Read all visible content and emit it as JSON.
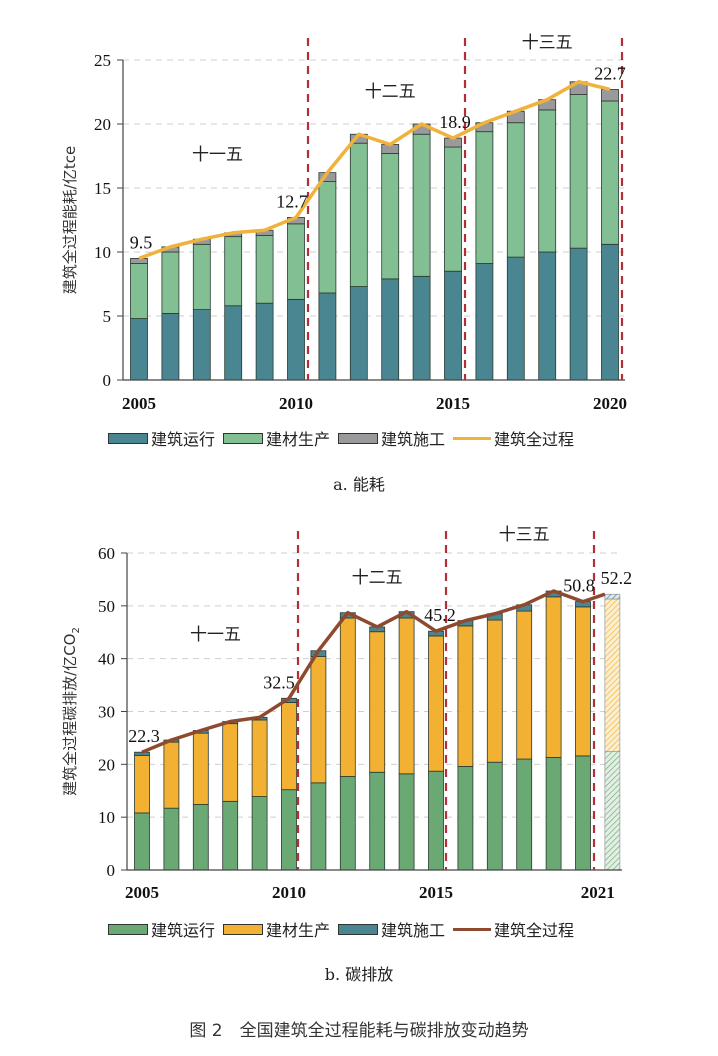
{
  "colors": {
    "operation_a": "#4a8592",
    "materials_a": "#82bf92",
    "construction_a": "#9a9a9c",
    "total_a": "#f0b23a",
    "operation_b": "#6aa874",
    "materials_b": "#f2b133",
    "construction_b": "#4a8592",
    "total_b": "#8e4a2e",
    "divider": "#b0303a"
  },
  "chart_data": [
    {
      "type": "bar",
      "stacked": true,
      "title": "a. 能耗",
      "ylabel": "建筑全过程能耗/亿tce",
      "xlabel": "",
      "ylim": [
        0,
        25
      ],
      "yticks": [
        "0",
        "5",
        "10",
        "15",
        "20",
        "25"
      ],
      "ytick_values": [
        0,
        5,
        10,
        15,
        20,
        25
      ],
      "grid": true,
      "categories": [
        "2005",
        "2006",
        "2007",
        "2008",
        "2009",
        "2010",
        "2011",
        "2012",
        "2013",
        "2014",
        "2015",
        "2016",
        "2017",
        "2018",
        "2019",
        "2020"
      ],
      "xtick_labels": [
        {
          "index": 0,
          "label": "2005"
        },
        {
          "index": 5,
          "label": "2010"
        },
        {
          "index": 10,
          "label": "2015"
        },
        {
          "index": 15,
          "label": "2020"
        }
      ],
      "series": [
        {
          "name": "建筑运行",
          "kind": "bar",
          "color_key": "operation_a",
          "values": [
            4.8,
            5.2,
            5.5,
            5.8,
            6.0,
            6.3,
            6.8,
            7.3,
            7.9,
            8.1,
            8.5,
            9.1,
            9.6,
            10.0,
            10.3,
            10.6
          ]
        },
        {
          "name": "建材生产",
          "kind": "bar",
          "color_key": "materials_a",
          "values": [
            4.3,
            4.8,
            5.1,
            5.4,
            5.3,
            5.9,
            8.7,
            11.2,
            9.8,
            11.1,
            9.7,
            10.3,
            10.5,
            11.1,
            12.0,
            11.2
          ]
        },
        {
          "name": "建筑施工",
          "kind": "bar",
          "color_key": "construction_a",
          "values": [
            0.4,
            0.4,
            0.4,
            0.3,
            0.4,
            0.5,
            0.7,
            0.7,
            0.7,
            0.8,
            0.7,
            0.7,
            0.9,
            0.8,
            1.0,
            0.9
          ]
        },
        {
          "name": "建筑全过程",
          "kind": "line",
          "color_key": "total_a",
          "values": [
            9.5,
            10.4,
            11.0,
            11.5,
            11.7,
            12.7,
            16.2,
            19.2,
            18.4,
            20.0,
            18.9,
            20.1,
            21.0,
            21.9,
            23.3,
            22.7
          ]
        }
      ],
      "data_labels": [
        {
          "index": 0,
          "text": "9.5"
        },
        {
          "index": 5,
          "text": "12.7"
        },
        {
          "index": 10,
          "text": "18.9"
        },
        {
          "index": 15,
          "text": "22.7"
        }
      ],
      "periods": [
        {
          "label": "十一五",
          "start": 0,
          "end": 5
        },
        {
          "label": "十二五",
          "start": 6,
          "end": 10
        },
        {
          "label": "十三五",
          "start": 11,
          "end": 15
        }
      ],
      "dividers_after_index": [
        5,
        10,
        15
      ],
      "legend_position": "bottom"
    },
    {
      "type": "bar",
      "stacked": true,
      "title": "b. 碳排放",
      "ylabel": "建筑全过程碳排放/亿CO",
      "ylabel_sub": "2",
      "xlabel": "",
      "ylim": [
        0,
        60
      ],
      "yticks": [
        "0",
        "10",
        "20",
        "30",
        "40",
        "50",
        "60"
      ],
      "ytick_values": [
        0,
        10,
        20,
        30,
        40,
        50,
        60
      ],
      "grid": true,
      "categories": [
        "2005",
        "2006",
        "2007",
        "2008",
        "2009",
        "2010",
        "2011",
        "2012",
        "2013",
        "2014",
        "2015",
        "2016",
        "2017",
        "2018",
        "2019",
        "2020",
        "2021"
      ],
      "xtick_labels": [
        {
          "index": 0,
          "label": "2005"
        },
        {
          "index": 5,
          "label": "2010"
        },
        {
          "index": 10,
          "label": "2015"
        },
        {
          "index": 15.5,
          "label": "2021"
        }
      ],
      "hatched_indices": [
        16
      ],
      "series": [
        {
          "name": "建筑运行",
          "kind": "bar",
          "color_key": "operation_b",
          "values": [
            10.8,
            11.7,
            12.4,
            13.0,
            13.9,
            15.2,
            16.5,
            17.7,
            18.5,
            18.2,
            18.7,
            19.6,
            20.4,
            21.0,
            21.3,
            21.6,
            22.4
          ]
        },
        {
          "name": "建材生产",
          "kind": "bar",
          "color_key": "materials_b",
          "values": [
            10.9,
            12.5,
            13.5,
            14.7,
            14.5,
            16.5,
            23.9,
            30.0,
            26.6,
            29.5,
            25.6,
            26.6,
            26.9,
            28.0,
            30.4,
            28.2,
            28.9
          ]
        },
        {
          "name": "建筑施工",
          "kind": "bar",
          "color_key": "construction_b",
          "values": [
            0.6,
            0.4,
            0.5,
            0.4,
            0.5,
            0.8,
            1.1,
            1.0,
            0.9,
            1.2,
            0.9,
            1.0,
            1.2,
            1.2,
            1.1,
            1.0,
            0.9
          ]
        },
        {
          "name": "建筑全过程",
          "kind": "line",
          "color_key": "total_b",
          "values": [
            22.3,
            24.6,
            26.4,
            28.1,
            28.9,
            32.5,
            41.5,
            48.7,
            46.0,
            48.9,
            45.2,
            47.2,
            48.5,
            50.2,
            52.8,
            50.8,
            52.2
          ]
        }
      ],
      "data_labels": [
        {
          "index": 0,
          "text": "22.3"
        },
        {
          "index": 5,
          "text": "32.5"
        },
        {
          "index": 10,
          "text": "45.2"
        },
        {
          "index": 15,
          "text": "50.8"
        },
        {
          "index": 16,
          "text": "52.2"
        }
      ],
      "periods": [
        {
          "label": "十一五",
          "start": 0,
          "end": 5
        },
        {
          "label": "十二五",
          "start": 6,
          "end": 10
        },
        {
          "label": "十三五",
          "start": 11,
          "end": 15
        }
      ],
      "dividers_after_index": [
        5,
        10,
        15
      ],
      "legend_position": "bottom"
    }
  ],
  "legend_a": [
    {
      "label": "建筑运行",
      "kind": "bar",
      "color_key": "operation_a"
    },
    {
      "label": "建材生产",
      "kind": "bar",
      "color_key": "materials_a"
    },
    {
      "label": "建筑施工",
      "kind": "bar",
      "color_key": "construction_a"
    },
    {
      "label": "建筑全过程",
      "kind": "line",
      "color_key": "total_a"
    }
  ],
  "legend_b": [
    {
      "label": "建筑运行",
      "kind": "bar",
      "color_key": "operation_b"
    },
    {
      "label": "建材生产",
      "kind": "bar",
      "color_key": "materials_b"
    },
    {
      "label": "建筑施工",
      "kind": "bar",
      "color_key": "construction_b"
    },
    {
      "label": "建筑全过程",
      "kind": "line",
      "color_key": "total_b"
    }
  ],
  "caption_a": "a. 能耗",
  "caption_b": "b. 碳排放",
  "figure_caption": "图 2　全国建筑全过程能耗与碳排放变动趋势"
}
